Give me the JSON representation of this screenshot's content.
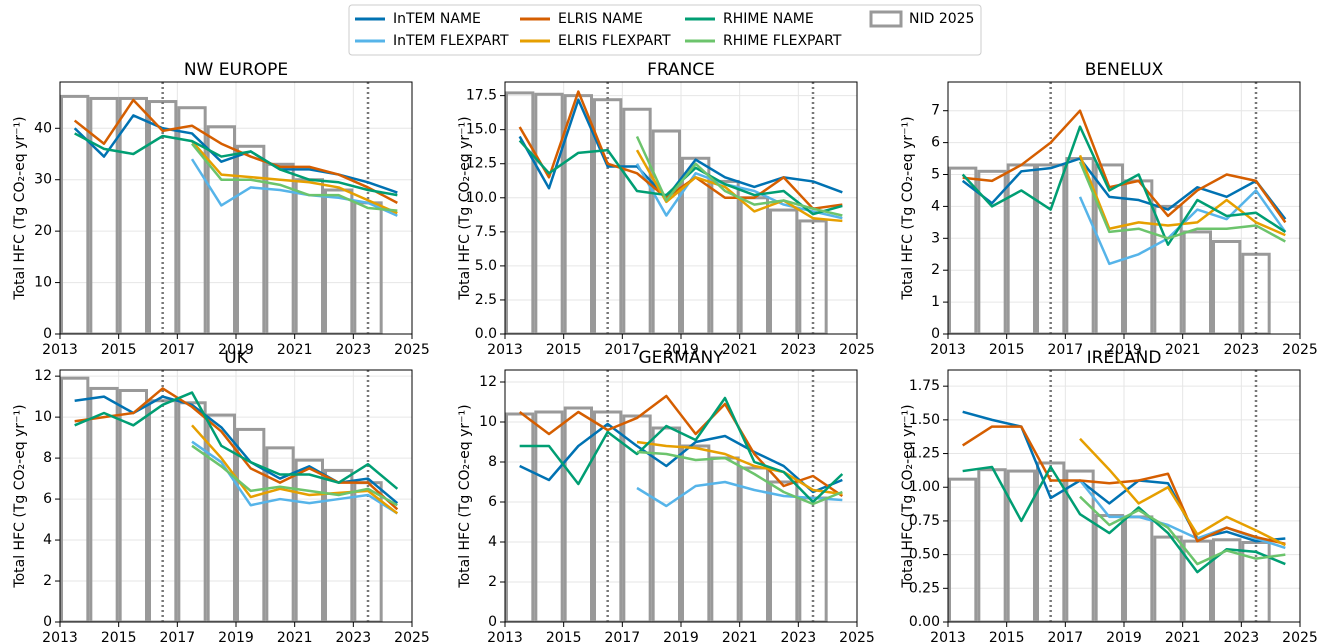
{
  "chart_data": [
    {
      "type": "line",
      "title": "NW EUROPE",
      "ylabel": "Total HFC  (Tg CO₂-eq yr⁻¹)",
      "x": [
        2013.5,
        2014.5,
        2015.5,
        2016.5,
        2017.5,
        2018.5,
        2019.5,
        2020.5,
        2021.5,
        2022.5,
        2023.5,
        2024.5
      ],
      "xlim": [
        2013,
        2025
      ],
      "xticks": [
        2013,
        2015,
        2017,
        2019,
        2021,
        2023,
        2025
      ],
      "ylim": [
        0,
        49
      ],
      "yticks": [
        0,
        10,
        20,
        30,
        40
      ],
      "grid": true,
      "vlines": [
        2016.5,
        2023.5
      ],
      "series": [
        {
          "name": "InTEM NAME",
          "color": "#0072b2",
          "values": [
            40,
            34.5,
            42.5,
            40,
            39,
            33.5,
            35.5,
            32,
            32,
            31,
            29.5,
            27.5
          ]
        },
        {
          "name": "InTEM FLEXPART",
          "color": "#56b4e9",
          "values": [
            null,
            null,
            null,
            null,
            34,
            25,
            28.5,
            28,
            27,
            26.5,
            25.5,
            23
          ]
        },
        {
          "name": "ELRIS NAME",
          "color": "#d55e00",
          "values": [
            41.5,
            37,
            45.5,
            39.5,
            40.5,
            37,
            34.5,
            32.5,
            32.5,
            31,
            28.5,
            25.5
          ]
        },
        {
          "name": "ELRIS FLEXPART",
          "color": "#e69f00",
          "values": [
            null,
            null,
            null,
            null,
            37.5,
            31,
            30.5,
            30,
            29.5,
            28.5,
            26,
            23.5
          ]
        },
        {
          "name": "RHIME NAME",
          "color": "#009e73",
          "values": [
            39,
            36,
            35,
            38.5,
            37.5,
            34.5,
            35.5,
            32,
            30,
            29.5,
            28,
            27
          ]
        },
        {
          "name": "RHIME FLEXPART",
          "color": "#6cc46c",
          "values": [
            null,
            null,
            null,
            null,
            37,
            30,
            30,
            29,
            27,
            27,
            24.5,
            24
          ]
        }
      ],
      "bar_x": [
        2013,
        2014,
        2015,
        2016,
        2017,
        2018,
        2019,
        2020,
        2021,
        2022,
        2023
      ],
      "bars": {
        "name": "NID 2025",
        "color": "#999999",
        "values": [
          46.2,
          45.8,
          45.8,
          45.2,
          44,
          40.3,
          36.5,
          33,
          30,
          28,
          25.5
        ]
      }
    },
    {
      "type": "line",
      "title": "FRANCE",
      "ylabel": "Total HFC  (Tg CO₂-eq yr⁻¹)",
      "x": [
        2013.5,
        2014.5,
        2015.5,
        2016.5,
        2017.5,
        2018.5,
        2019.5,
        2020.5,
        2021.5,
        2022.5,
        2023.5,
        2024.5
      ],
      "xlim": [
        2013,
        2025
      ],
      "xticks": [
        2013,
        2015,
        2017,
        2019,
        2021,
        2023,
        2025
      ],
      "ylim": [
        0,
        18.5
      ],
      "yticks": [
        {
          "value": 0,
          "label": "0.0"
        },
        2.5,
        {
          "value": 5,
          "label": "5.0"
        },
        7.5,
        {
          "value": 10,
          "label": "10.0"
        },
        12.5,
        {
          "value": 15,
          "label": "15.0"
        },
        17.5
      ],
      "grid": true,
      "vlines": [
        2016.5,
        2023.5
      ],
      "series": [
        {
          "values": [
            14.5,
            10.7,
            17.2,
            12.3,
            12.3,
            10,
            12.8,
            11.5,
            10.8,
            11.5,
            11.2,
            10.4
          ]
        },
        {
          "values": [
            null,
            null,
            null,
            null,
            12.5,
            8.7,
            11.8,
            11,
            10.5,
            9.5,
            9,
            8.5
          ]
        },
        {
          "values": [
            15.2,
            11.5,
            17.8,
            12.5,
            11.8,
            10,
            11.5,
            10,
            10,
            11.5,
            9.2,
            9.5
          ]
        },
        {
          "values": [
            null,
            null,
            null,
            null,
            13.5,
            9.7,
            11.5,
            10.8,
            9,
            9.8,
            8.5,
            8.3
          ]
        },
        {
          "values": [
            14.2,
            11.8,
            13.3,
            13.5,
            10.5,
            10.2,
            12.2,
            11,
            10.2,
            10.5,
            8.8,
            9.4
          ]
        },
        {
          "values": [
            null,
            null,
            null,
            null,
            14.5,
            9.8,
            12.5,
            10.5,
            9.5,
            9.8,
            9.2,
            8.7
          ]
        }
      ],
      "bar_x": [
        2013,
        2014,
        2015,
        2016,
        2017,
        2018,
        2019,
        2020,
        2021,
        2022,
        2023
      ],
      "bars": {
        "values": [
          17.7,
          17.6,
          17.5,
          17.2,
          16.5,
          14.9,
          12.9,
          11.2,
          10,
          9.1,
          8.3
        ]
      }
    },
    {
      "type": "line",
      "title": "BENELUX",
      "ylabel": "Total HFC  (Tg CO₂-eq yr⁻¹)",
      "x": [
        2013.5,
        2014.5,
        2015.5,
        2016.5,
        2017.5,
        2018.5,
        2019.5,
        2020.5,
        2021.5,
        2022.5,
        2023.5,
        2024.5
      ],
      "xlim": [
        2013,
        2025
      ],
      "xticks": [
        2013,
        2015,
        2017,
        2019,
        2021,
        2023,
        2025
      ],
      "ylim": [
        0,
        7.9
      ],
      "yticks": [
        0,
        1,
        2,
        3,
        4,
        5,
        6,
        7
      ],
      "grid": true,
      "vlines": [
        2016.5,
        2023.5
      ],
      "series": [
        {
          "values": [
            4.8,
            4.1,
            5.1,
            5.2,
            5.5,
            4.3,
            4.2,
            3.9,
            4.6,
            4.3,
            4.8,
            3.6
          ]
        },
        {
          "values": [
            null,
            null,
            null,
            null,
            4.3,
            2.2,
            2.5,
            3,
            3.9,
            3.6,
            4.5,
            3.2
          ]
        },
        {
          "values": [
            4.9,
            4.8,
            5.3,
            6,
            7,
            4.6,
            4.8,
            3.7,
            4.5,
            5,
            4.8,
            3.5
          ]
        },
        {
          "values": [
            null,
            null,
            null,
            null,
            5.6,
            3.3,
            3.5,
            3.4,
            3.5,
            4.2,
            3.5,
            3.1
          ]
        },
        {
          "values": [
            5,
            4,
            4.5,
            3.9,
            6.5,
            4.5,
            5,
            2.8,
            4.2,
            3.7,
            3.8,
            3.2
          ]
        },
        {
          "values": [
            null,
            null,
            null,
            null,
            5.4,
            3.2,
            3.3,
            3,
            3.3,
            3.3,
            3.4,
            2.9
          ]
        }
      ],
      "bar_x": [
        2013,
        2014,
        2015,
        2016,
        2017,
        2018,
        2019,
        2020,
        2021,
        2022,
        2023
      ],
      "bars": {
        "values": [
          5.2,
          5.1,
          5.3,
          5.3,
          5.5,
          5.3,
          4.8,
          4,
          3.2,
          2.9,
          2.5
        ]
      }
    },
    {
      "type": "line",
      "title": "UK",
      "ylabel": "Total HFC  (Tg CO₂-eq yr⁻¹)",
      "x": [
        2013.5,
        2014.5,
        2015.5,
        2016.5,
        2017.5,
        2018.5,
        2019.5,
        2020.5,
        2021.5,
        2022.5,
        2023.5,
        2024.5
      ],
      "xlim": [
        2013,
        2025
      ],
      "xticks": [
        2013,
        2015,
        2017,
        2019,
        2021,
        2023,
        2025
      ],
      "ylim": [
        0,
        12.3
      ],
      "yticks": [
        0,
        2,
        4,
        6,
        8,
        10,
        12
      ],
      "grid": true,
      "vlines": [
        2016.5,
        2023.5
      ],
      "series": [
        {
          "values": [
            10.8,
            11,
            10.2,
            11,
            10.6,
            9.5,
            7.8,
            7,
            7.6,
            6.8,
            7,
            5.8
          ]
        },
        {
          "values": [
            null,
            null,
            null,
            null,
            8.8,
            7.8,
            5.7,
            6,
            5.8,
            6,
            6.2,
            5.3
          ]
        },
        {
          "values": [
            9.8,
            10,
            10.2,
            11.4,
            10.5,
            9.3,
            7.5,
            6.8,
            7.5,
            6.8,
            6.8,
            5.5
          ]
        },
        {
          "values": [
            null,
            null,
            null,
            null,
            9.6,
            8,
            6.1,
            6.5,
            6.2,
            6.3,
            6.4,
            5.3
          ]
        },
        {
          "values": [
            9.6,
            10.2,
            9.6,
            10.6,
            11.2,
            8.6,
            7.8,
            7.2,
            7.2,
            6.8,
            7.7,
            6.5
          ]
        },
        {
          "values": [
            null,
            null,
            null,
            null,
            8.6,
            7.6,
            6.4,
            6.6,
            6.4,
            6.2,
            6.5,
            5.7
          ]
        }
      ],
      "bar_x": [
        2013,
        2014,
        2015,
        2016,
        2017,
        2018,
        2019,
        2020,
        2021,
        2022,
        2023
      ],
      "bars": {
        "values": [
          11.9,
          11.4,
          11.3,
          10.8,
          10.7,
          10.1,
          9.4,
          8.5,
          7.9,
          7.4,
          6.8
        ]
      }
    },
    {
      "type": "line",
      "title": "GERMANY",
      "ylabel": "Total HFC  (Tg CO₂-eq yr⁻¹)",
      "x": [
        2013.5,
        2014.5,
        2015.5,
        2016.5,
        2017.5,
        2018.5,
        2019.5,
        2020.5,
        2021.5,
        2022.5,
        2023.5,
        2024.5
      ],
      "xlim": [
        2013,
        2025
      ],
      "xticks": [
        2013,
        2015,
        2017,
        2019,
        2021,
        2023,
        2025
      ],
      "ylim": [
        0,
        12.6
      ],
      "yticks": [
        0,
        2,
        4,
        6,
        8,
        10,
        12
      ],
      "grid": true,
      "vlines": [
        2016.5,
        2023.5
      ],
      "series": [
        {
          "values": [
            7.8,
            7.1,
            8.8,
            9.9,
            8.8,
            7.8,
            9,
            9.3,
            8.5,
            7.8,
            6.5,
            7.1
          ]
        },
        {
          "values": [
            null,
            null,
            null,
            null,
            6.7,
            5.8,
            6.8,
            7,
            6.6,
            6.3,
            6.2,
            6.1
          ]
        },
        {
          "values": [
            10.5,
            9.4,
            10.5,
            9.6,
            10.2,
            11.3,
            9.4,
            10.9,
            8.4,
            6.8,
            7.3,
            6.3
          ]
        },
        {
          "values": [
            null,
            null,
            null,
            null,
            9,
            8.8,
            8.7,
            8.4,
            7.8,
            7.5,
            6.6,
            6.4
          ]
        },
        {
          "values": [
            8.8,
            8.8,
            6.9,
            9.5,
            8.4,
            9.8,
            9.1,
            11.2,
            8,
            7.5,
            6,
            7.4
          ]
        },
        {
          "values": [
            null,
            null,
            null,
            null,
            8.5,
            8.4,
            8.1,
            8.2,
            7.4,
            6.5,
            5.9,
            6.5
          ]
        }
      ],
      "bar_x": [
        2013,
        2014,
        2015,
        2016,
        2017,
        2018,
        2019,
        2020,
        2021,
        2022,
        2023
      ],
      "bars": {
        "values": [
          10.4,
          10.5,
          10.7,
          10.5,
          10.3,
          9.7,
          8.8,
          8.2,
          7.7,
          7,
          6.2
        ]
      }
    },
    {
      "type": "line",
      "title": "IRELAND",
      "ylabel": "Total HFC  (Tg CO₂-eq yr⁻¹)",
      "x": [
        2013.5,
        2014.5,
        2015.5,
        2016.5,
        2017.5,
        2018.5,
        2019.5,
        2020.5,
        2021.5,
        2022.5,
        2023.5,
        2024.5
      ],
      "xlim": [
        2013,
        2025
      ],
      "xticks": [
        2013,
        2015,
        2017,
        2019,
        2021,
        2023,
        2025
      ],
      "ylim": [
        0,
        1.87
      ],
      "yticks": [
        {
          "value": 0,
          "label": "0.00"
        },
        0.25,
        {
          "value": 0.5,
          "label": "0.50"
        },
        0.75,
        {
          "value": 1,
          "label": "1.00"
        },
        1.25,
        {
          "value": 1.5,
          "label": "1.50"
        },
        1.75
      ],
      "grid": true,
      "vlines": [
        2016.5,
        2023.5
      ],
      "series": [
        {
          "values": [
            1.56,
            1.5,
            1.45,
            0.92,
            1.05,
            0.88,
            1.05,
            1.03,
            0.62,
            0.67,
            0.6,
            0.62
          ]
        },
        {
          "values": [
            null,
            null,
            null,
            null,
            1.05,
            0.78,
            0.78,
            0.72,
            0.62,
            0.7,
            0.62,
            0.55
          ]
        },
        {
          "values": [
            1.31,
            1.45,
            1.45,
            1.05,
            1.05,
            1.03,
            1.05,
            1.1,
            0.6,
            0.7,
            0.63,
            0.58
          ]
        },
        {
          "values": [
            null,
            null,
            null,
            null,
            1.36,
            1.13,
            0.88,
            1,
            0.65,
            0.78,
            0.68,
            0.57
          ]
        },
        {
          "values": [
            1.12,
            1.15,
            0.75,
            1.15,
            0.8,
            0.66,
            0.85,
            0.66,
            0.37,
            0.54,
            0.52,
            0.43
          ]
        },
        {
          "values": [
            null,
            null,
            null,
            null,
            0.93,
            0.72,
            0.83,
            0.7,
            0.43,
            0.53,
            0.47,
            0.5
          ]
        }
      ],
      "bar_x": [
        2013,
        2014,
        2015,
        2016,
        2017,
        2018,
        2019,
        2020,
        2021,
        2022,
        2023
      ],
      "bars": {
        "values": [
          1.06,
          1.13,
          1.12,
          1.18,
          1.12,
          0.79,
          0.78,
          0.63,
          0.6,
          0.61,
          0.59
        ]
      }
    }
  ]
}
